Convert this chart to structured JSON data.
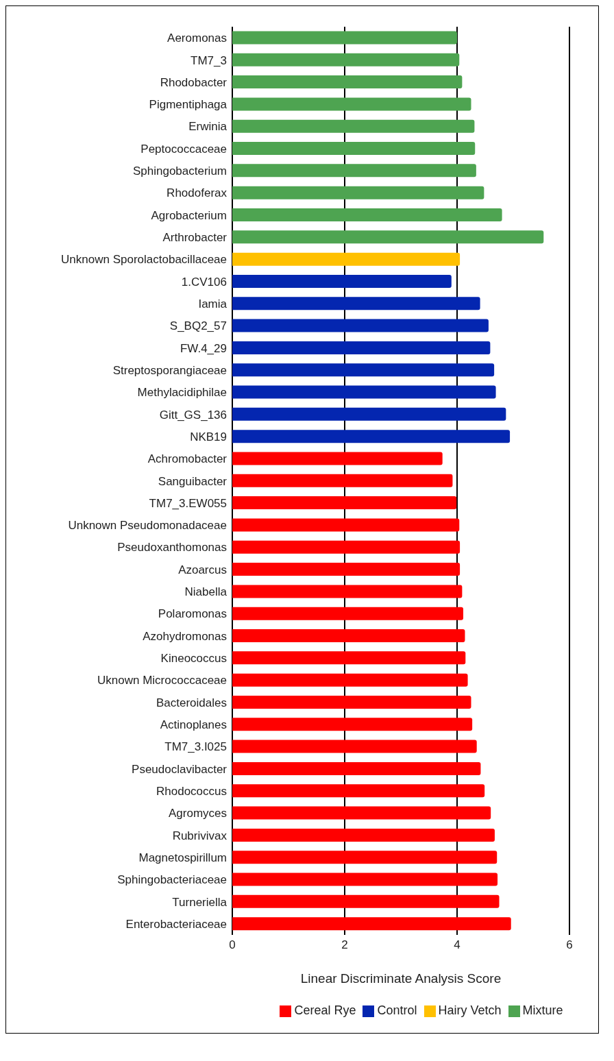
{
  "chart_data": {
    "type": "bar",
    "orientation": "horizontal",
    "stacked": true,
    "xlabel": "Linear Discriminate Analysis Score",
    "categories": [
      "Aeromonas",
      "TM7_3",
      "Rhodobacter",
      "Pigmentiphaga",
      "Erwinia",
      "Peptococcaceae",
      "Sphingobacterium",
      "Rhodoferax",
      "Agrobacterium",
      "Arthrobacter",
      "Unknown Sporolactobacillaceae",
      "1.CV106",
      "Iamia",
      "S_BQ2_57",
      "FW.4_29",
      "Streptosporangiaceae",
      "Methylacidiphilae",
      "Gitt_GS_136",
      "NKB19",
      "Achromobacter",
      "Sanguibacter",
      "TM7_3.EW055",
      "Unknown Pseudomonadaceae",
      "Pseudoxanthomonas",
      "Azoarcus",
      "Niabella",
      "Polaromonas",
      "Azohydromonas",
      "Kineococcus",
      "Uknown Micrococcaceae",
      "Bacteroidales",
      "Actinoplanes",
      "TM7_3.I025",
      "Pseudoclavibacter",
      "Rhodococcus",
      "Agromyces",
      "Rubrivivax",
      "Magnetospirillum",
      "Sphingobacteriaceae",
      "Turneriella",
      "Enterobacteriaceae"
    ],
    "series": [
      {
        "name": "Mixture",
        "color": "#4ea451",
        "values": [
          4.0,
          4.04,
          4.09,
          4.25,
          4.31,
          4.32,
          4.34,
          4.48,
          4.8,
          5.54,
          null,
          null,
          null,
          null,
          null,
          null,
          null,
          null,
          null,
          null,
          null,
          null,
          null,
          null,
          null,
          null,
          null,
          null,
          null,
          null,
          null,
          null,
          null,
          null,
          null,
          null,
          null,
          null,
          null,
          null,
          null
        ]
      },
      {
        "name": "Hairy Vetch",
        "color": "#ffc000",
        "values": [
          null,
          null,
          null,
          null,
          null,
          null,
          null,
          null,
          null,
          null,
          4.05,
          null,
          null,
          null,
          null,
          null,
          null,
          null,
          null,
          null,
          null,
          null,
          null,
          null,
          null,
          null,
          null,
          null,
          null,
          null,
          null,
          null,
          null,
          null,
          null,
          null,
          null,
          null,
          null,
          null,
          null
        ]
      },
      {
        "name": "Control",
        "color": "#0426b0",
        "values": [
          null,
          null,
          null,
          null,
          null,
          null,
          null,
          null,
          null,
          null,
          null,
          3.9,
          4.41,
          4.56,
          4.59,
          4.66,
          4.69,
          4.87,
          4.94,
          null,
          null,
          null,
          null,
          null,
          null,
          null,
          null,
          null,
          null,
          null,
          null,
          null,
          null,
          null,
          null,
          null,
          null,
          null,
          null,
          null,
          null
        ]
      },
      {
        "name": "Cereal Rye",
        "color": "#ff0000",
        "values": [
          null,
          null,
          null,
          null,
          null,
          null,
          null,
          null,
          null,
          null,
          null,
          null,
          null,
          null,
          null,
          null,
          null,
          null,
          null,
          3.74,
          3.92,
          3.99,
          4.04,
          4.05,
          4.05,
          4.09,
          4.11,
          4.14,
          4.15,
          4.19,
          4.25,
          4.27,
          4.35,
          4.42,
          4.49,
          4.6,
          4.67,
          4.71,
          4.72,
          4.75,
          4.96
        ]
      }
    ],
    "xlim": [
      0,
      6
    ],
    "xticks": [
      0,
      2,
      4,
      6
    ],
    "grid": "x",
    "legend": "bottom"
  }
}
